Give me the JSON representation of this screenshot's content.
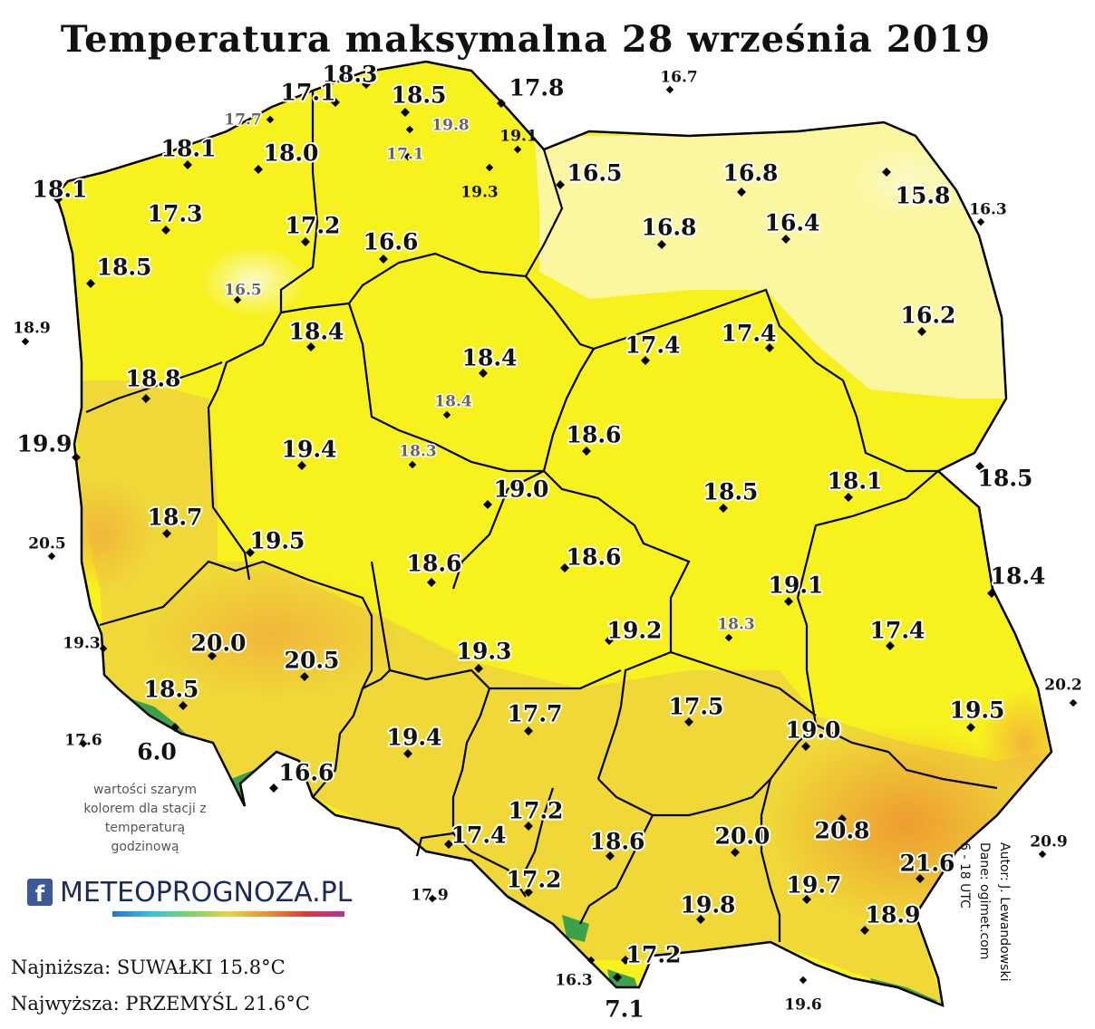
{
  "title": "Temperatura maksymalna 28 września 2019",
  "colors": {
    "outside": "#ffffff",
    "cool": "#fbf7a0",
    "mild": "#f7f21d",
    "warm": "#efd838",
    "hot": "#f2b63a",
    "mountain": "#3aa24a",
    "border": "#000000"
  },
  "stations": [
    {
      "v": "18.3",
      "s": "big"
    },
    {
      "v": "17.1",
      "s": "big"
    },
    {
      "v": "18.5",
      "s": "big"
    },
    {
      "v": "17.8",
      "s": "big"
    },
    {
      "v": "16.7",
      "s": "small"
    },
    {
      "v": "17.7",
      "s": "gray"
    },
    {
      "v": "19.8",
      "s": "gray"
    },
    {
      "v": "19.1",
      "s": "small"
    },
    {
      "v": "18.1",
      "s": "big"
    },
    {
      "v": "18.0",
      "s": "big"
    },
    {
      "v": "17.1",
      "s": "gray"
    },
    {
      "v": "16.5",
      "s": "big"
    },
    {
      "v": "16.8",
      "s": "big"
    },
    {
      "v": "19.3",
      "s": "small"
    },
    {
      "v": "18.1",
      "s": "big"
    },
    {
      "v": "15.8",
      "s": "big"
    },
    {
      "v": "16.3",
      "s": "small"
    },
    {
      "v": "17.3",
      "s": "big"
    },
    {
      "v": "17.2",
      "s": "big"
    },
    {
      "v": "16.6",
      "s": "big"
    },
    {
      "v": "16.8",
      "s": "big"
    },
    {
      "v": "16.4",
      "s": "big"
    },
    {
      "v": "18.5",
      "s": "big"
    },
    {
      "v": "16.5",
      "s": "gray"
    },
    {
      "v": "16.2",
      "s": "big"
    },
    {
      "v": "18.9",
      "s": "small"
    },
    {
      "v": "18.4",
      "s": "big"
    },
    {
      "v": "17.4",
      "s": "big"
    },
    {
      "v": "17.4",
      "s": "big"
    },
    {
      "v": "18.4",
      "s": "big"
    },
    {
      "v": "18.8",
      "s": "big"
    },
    {
      "v": "18.4",
      "s": "gray"
    },
    {
      "v": "19.9",
      "s": "big"
    },
    {
      "v": "19.4",
      "s": "big"
    },
    {
      "v": "18.3",
      "s": "gray"
    },
    {
      "v": "18.6",
      "s": "big"
    },
    {
      "v": "18.5",
      "s": "big"
    },
    {
      "v": "19.0",
      "s": "big"
    },
    {
      "v": "18.5",
      "s": "big"
    },
    {
      "v": "18.1",
      "s": "big"
    },
    {
      "v": "18.7",
      "s": "big"
    },
    {
      "v": "20.5",
      "s": "small"
    },
    {
      "v": "19.5",
      "s": "big"
    },
    {
      "v": "18.6",
      "s": "big"
    },
    {
      "v": "18.6",
      "s": "big"
    },
    {
      "v": "18.4",
      "s": "big"
    },
    {
      "v": "19.1",
      "s": "big"
    },
    {
      "v": "18.3",
      "s": "gray"
    },
    {
      "v": "19.3",
      "s": "small"
    },
    {
      "v": "20.0",
      "s": "big"
    },
    {
      "v": "20.5",
      "s": "big"
    },
    {
      "v": "19.2",
      "s": "big"
    },
    {
      "v": "17.4",
      "s": "big"
    },
    {
      "v": "19.3",
      "s": "big"
    },
    {
      "v": "20.2",
      "s": "small"
    },
    {
      "v": "18.5",
      "s": "big"
    },
    {
      "v": "17.7",
      "s": "big"
    },
    {
      "v": "17.5",
      "s": "big"
    },
    {
      "v": "19.5",
      "s": "big"
    },
    {
      "v": "17.6",
      "s": "small"
    },
    {
      "v": "6.0",
      "s": "big"
    },
    {
      "v": "19.4",
      "s": "big"
    },
    {
      "v": "19.0",
      "s": "big"
    },
    {
      "v": "16.6",
      "s": "big"
    },
    {
      "v": "17.2",
      "s": "big"
    },
    {
      "v": "20.8",
      "s": "big"
    },
    {
      "v": "17.4",
      "s": "big"
    },
    {
      "v": "18.6",
      "s": "big"
    },
    {
      "v": "20.0",
      "s": "big"
    },
    {
      "v": "20.9",
      "s": "small"
    },
    {
      "v": "21.6",
      "s": "big"
    },
    {
      "v": "17.9",
      "s": "small"
    },
    {
      "v": "17.2",
      "s": "big"
    },
    {
      "v": "19.7",
      "s": "big"
    },
    {
      "v": "19.8",
      "s": "big"
    },
    {
      "v": "18.9",
      "s": "big"
    },
    {
      "v": "17.2",
      "s": "big"
    },
    {
      "v": "16.3",
      "s": "small"
    },
    {
      "v": "19.6",
      "s": "small"
    },
    {
      "v": "7.1",
      "s": "big"
    }
  ],
  "note": "wartości szarym kolorem dla stacji z temperaturą godzinową",
  "logo": {
    "facebook_icon": "facebook-icon",
    "text": "METEOPROGNOZA.PL"
  },
  "extremes": {
    "lowest": "Najniższa: SUWAŁKI 15.8°C",
    "highest": "Najwyższa: PRZEMYŚL 21.6°C"
  },
  "credits": {
    "author": "Autor: J. Lewandowski",
    "data": "Dane: ogimet.com",
    "period": "6 - 18 UTC"
  }
}
